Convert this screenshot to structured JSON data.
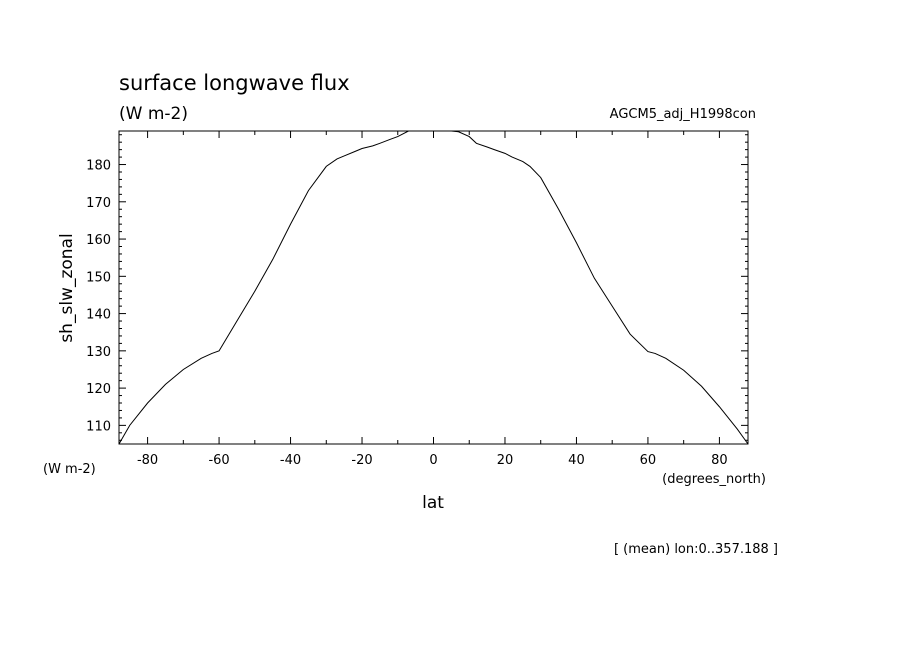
{
  "chart_data": {
    "type": "line",
    "title": "surface longwave flux",
    "subtitle": "(W m-2)",
    "run_label": "AGCM5_adj_H1998con",
    "ylabel": "sh_slw_zonal",
    "xlabel": "lat",
    "y_unit": "(W m-2)",
    "x_unit": "(degrees_north)",
    "footer_note": "[ (mean) lon:0..357.188 ]",
    "xlim": [
      -88,
      88
    ],
    "ylim": [
      105,
      189
    ],
    "xticks": [
      -80,
      -60,
      -40,
      -20,
      0,
      20,
      40,
      60,
      80
    ],
    "xtick_labels": [
      "-80",
      "-60",
      "-40",
      "-20",
      "0",
      "20",
      "40",
      "60",
      "80"
    ],
    "yticks": [
      110,
      120,
      130,
      140,
      150,
      160,
      170,
      180
    ],
    "ytick_labels": [
      "110",
      "120",
      "130",
      "140",
      "150",
      "160",
      "170",
      "180"
    ],
    "grid": false,
    "line_color": "#000000",
    "series": [
      {
        "x": [
          -88,
          -85,
          -80,
          -75,
          -70,
          -65,
          -62,
          -60,
          -55,
          -50,
          -45,
          -40,
          -35,
          -30,
          -27,
          -25,
          -22,
          -20,
          -17,
          -15,
          -12,
          -10,
          -7,
          -5,
          -3,
          0,
          3,
          5,
          7,
          10,
          12,
          15,
          17,
          20,
          22,
          25,
          27,
          30,
          35,
          40,
          45,
          50,
          55,
          60,
          62,
          65,
          70,
          75,
          80,
          85,
          88
        ],
        "y": [
          105.0,
          110.0,
          116.0,
          121.0,
          125.0,
          128.0,
          129.3,
          130.0,
          138.0,
          146.0,
          154.5,
          164.0,
          173.0,
          179.5,
          181.5,
          182.3,
          183.5,
          184.3,
          185.0,
          185.7,
          186.8,
          187.5,
          189.0,
          189.0,
          189.0,
          189.0,
          189.0,
          189.0,
          188.8,
          187.5,
          185.7,
          184.7,
          184.0,
          183.0,
          182.0,
          180.8,
          179.5,
          176.5,
          168.0,
          159.0,
          149.5,
          142.0,
          134.5,
          129.8,
          129.3,
          128.0,
          124.8,
          120.5,
          115.0,
          109.0,
          105.0
        ]
      }
    ]
  }
}
